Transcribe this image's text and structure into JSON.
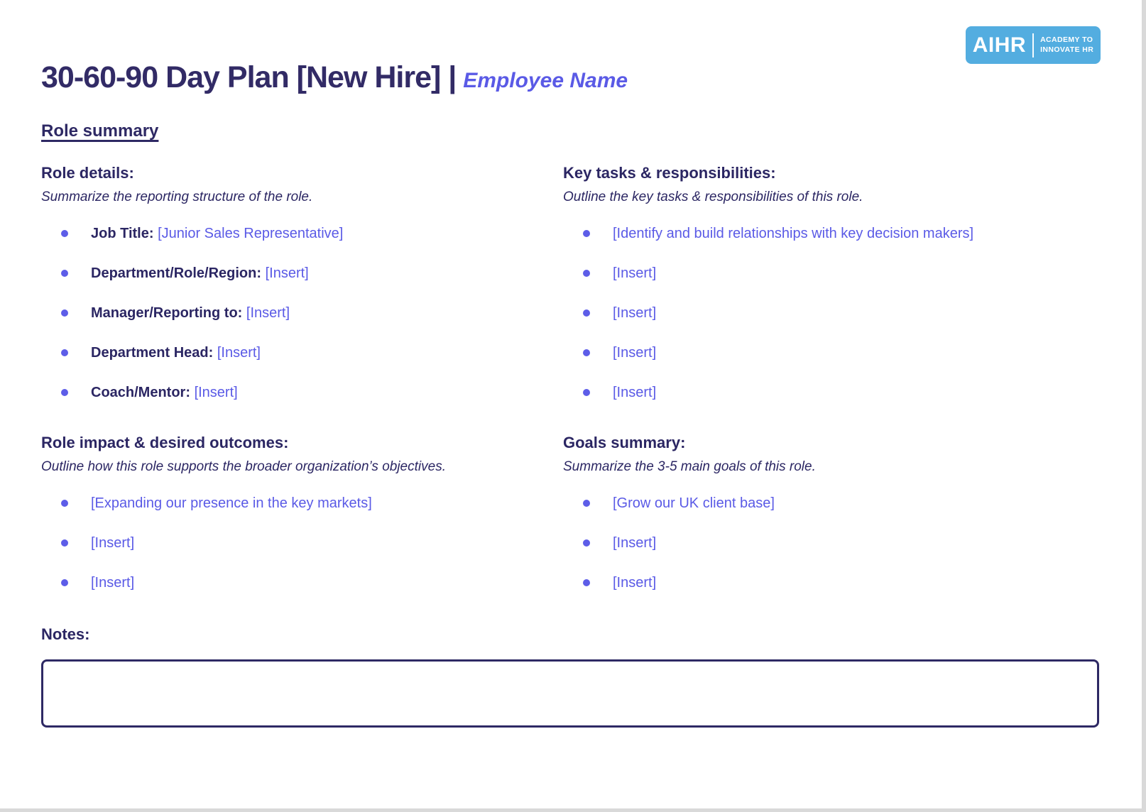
{
  "logo": {
    "brand": "AIHR",
    "tagline_line1": "ACADEMY TO",
    "tagline_line2": "INNOVATE HR",
    "background_color": "#53ade0"
  },
  "header": {
    "title": "30-60-90 Day Plan [New Hire] |",
    "employee_name": "Employee Name",
    "section_heading": "Role summary"
  },
  "colors": {
    "dark_navy_text": "#2e2964",
    "accent_blue_text": "#5a5ae6",
    "notes_border": "#2e2964"
  },
  "sections": {
    "role_details": {
      "heading": "Role details:",
      "subtitle": "Summarize the reporting structure of the role.",
      "items": [
        {
          "label": "Job Title:",
          "value": "[Junior Sales Representative]"
        },
        {
          "label": "Department/Role/Region:",
          "value": "[Insert]"
        },
        {
          "label": "Manager/Reporting to:",
          "value": "[Insert]"
        },
        {
          "label": "Department Head:",
          "value": "[Insert]"
        },
        {
          "label": "Coach/Mentor:",
          "value": "[Insert]"
        }
      ]
    },
    "key_tasks": {
      "heading": "Key tasks & responsibilities:",
      "subtitle": "Outline the key tasks & responsibilities of this role.",
      "items": [
        "[Identify and build relationships with key decision makers]",
        "[Insert]",
        "[Insert]",
        "[Insert]",
        "[Insert]"
      ]
    },
    "role_impact": {
      "heading": "Role impact & desired outcomes:",
      "subtitle": "Outline how this role supports the broader organization’s objectives.",
      "items": [
        "[Expanding our presence in the key markets]",
        "[Insert]",
        "[Insert]"
      ]
    },
    "goals_summary": {
      "heading": "Goals summary:",
      "subtitle": "Summarize the 3-5 main goals of this role.",
      "items": [
        "[Grow our UK client base]",
        "[Insert]",
        "[Insert]"
      ]
    },
    "notes": {
      "heading": "Notes:",
      "value": ""
    }
  }
}
